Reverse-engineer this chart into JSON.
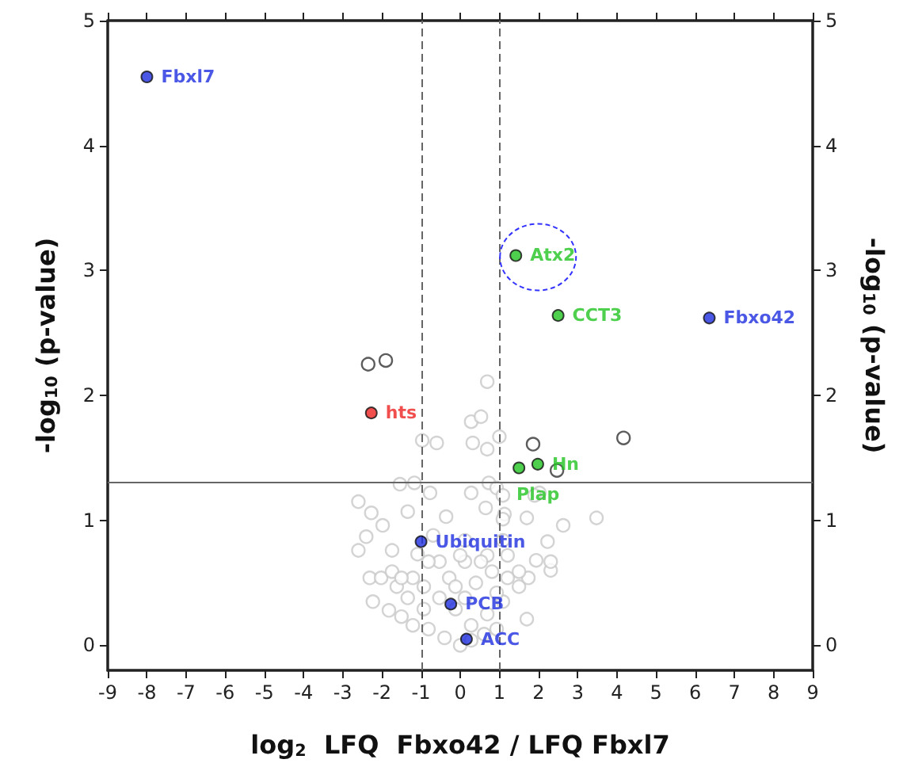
{
  "chart_data": {
    "type": "scatter",
    "xlabel": "log$_{2}$  LFQ  Fbxo42 / LFQ Fbxl7",
    "ylabel": "-log$_{10}$ (p-value)",
    "y2label": "-log$_{10}$ (p-value)",
    "xlim": [
      -9,
      9
    ],
    "xticks": [
      -9,
      -8,
      -7,
      -6,
      -5,
      -4,
      -3,
      -2,
      -1,
      0,
      1,
      2,
      3,
      4,
      5,
      6,
      7,
      8,
      9
    ],
    "ylim": [
      -0.2,
      5
    ],
    "yticks": [
      0,
      1,
      2,
      3,
      4,
      5
    ],
    "y2lim": [
      -0.2,
      5
    ],
    "y2ticks": [
      0,
      1,
      2,
      3,
      4,
      5
    ],
    "grid": false,
    "marker": "circle",
    "ref_lines": [
      {
        "axis": "x",
        "value": -1,
        "color": "#666666",
        "line_style": "dashed"
      },
      {
        "axis": "x",
        "value": 1,
        "color": "#666666",
        "line_style": "dashed"
      },
      {
        "axis": "y",
        "value": 1.3,
        "color": "#666666",
        "line_style": "solid"
      }
    ],
    "series": [
      {
        "color": "#c8c8c8",
        "x": [
          0.69,
          0.28,
          0.53,
          -0.97,
          -0.6,
          0.32,
          0.69,
          1.0,
          -1.54,
          -1.17,
          0.73,
          -2.6,
          -2.27,
          -1.98,
          -2.4,
          -2.6,
          -1.34,
          -0.77,
          -0.36,
          0.28,
          0.65,
          1.13,
          1.7,
          2.02,
          2.63,
          3.48,
          1.09,
          2.23,
          2.31,
          1.94,
          1.7,
          -2.31,
          -2.02,
          -1.74,
          -2.23,
          -1.82,
          -1.5,
          -1.21,
          -0.81,
          -0.4,
          0,
          0.28,
          0.69,
          1.09,
          1.5,
          1.74,
          -0.53,
          0.12,
          0.69,
          -1.21,
          -0.93,
          -0.53,
          0.4,
          0.81,
          -0.69,
          0.12,
          0.53,
          1.21,
          1.5,
          -1.62,
          -1.34,
          -0.93,
          -0.12,
          0.12,
          0.93,
          1.21,
          2.31,
          -0.81,
          -0.28,
          0.93,
          0.61,
          0.28,
          1.09,
          0,
          -0.12,
          -1.74,
          -1.09,
          1.9,
          0.93,
          1.09,
          -1.5
        ],
        "values": [
          2.11,
          1.79,
          1.83,
          1.64,
          1.62,
          1.62,
          1.57,
          1.67,
          1.29,
          1.3,
          1.3,
          1.15,
          1.06,
          0.96,
          0.87,
          0.76,
          1.07,
          1.22,
          1.03,
          1.22,
          1.1,
          1.05,
          1.02,
          1.22,
          0.96,
          1.02,
          0.84,
          0.83,
          0.6,
          0.68,
          0.21,
          0.54,
          0.54,
          0.76,
          0.35,
          0.28,
          0.23,
          0.16,
          0.13,
          0.06,
          0,
          0.16,
          0.25,
          0.35,
          0.47,
          0.54,
          0.67,
          0.67,
          0.72,
          0.54,
          0.47,
          0.38,
          0.5,
          0.59,
          0.88,
          0.84,
          0.67,
          0.72,
          0.59,
          0.47,
          0.38,
          0.29,
          0.29,
          0.38,
          0.42,
          0.54,
          0.67,
          0.67,
          0.54,
          0.13,
          0.09,
          0.04,
          1.01,
          0.72,
          0.47,
          0.59,
          0.73,
          1.2,
          1.26,
          1.2,
          0.54
        ]
      },
      {
        "color": "#333333",
        "x": [
          -2.35,
          -1.9,
          1.86,
          4.17,
          2.47
        ],
        "values": [
          2.25,
          2.28,
          1.61,
          1.66,
          1.4
        ]
      },
      {
        "color": "#1e2ee0",
        "x": [
          -8.0,
          6.36,
          -1.0,
          -0.24,
          0.16
        ],
        "values": [
          4.55,
          2.62,
          0.83,
          0.33,
          0.05
        ],
        "value_labels": [
          "Fbxl7",
          "Fbxo42",
          "Ubiquitin",
          "PCB",
          "ACC"
        ]
      },
      {
        "color": "#22c422",
        "x": [
          1.42,
          2.5,
          1.98,
          1.5
        ],
        "values": [
          3.12,
          2.64,
          1.45,
          1.42
        ],
        "value_labels": [
          "Atx2",
          "CCT3",
          "Hn",
          "Plap"
        ]
      },
      {
        "color": "#ee2222",
        "x": [
          -2.27
        ],
        "values": [
          1.86
        ],
        "value_labels": [
          "hts"
        ]
      }
    ]
  }
}
